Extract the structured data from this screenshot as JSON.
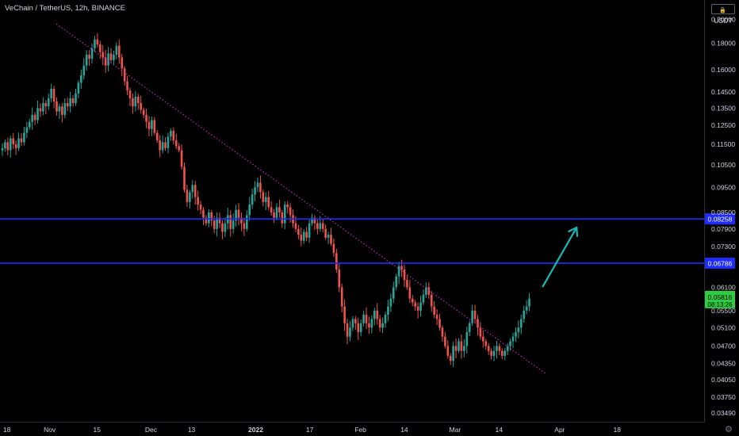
{
  "chart_title": "VeChain / TetherUS, 12h, BINANCE",
  "currency_label": "USDT",
  "icons": {
    "currency_toggle": "lock-icon",
    "settings": "gear-icon",
    "trend_arrow": "arrow-up-right-icon"
  },
  "colors": {
    "background": "#000000",
    "up_candle": "#26a69a",
    "down_candle": "#ef5350",
    "horizontal_levels": "#1e2bff",
    "trendline": "#c327c3",
    "arrow": "#17b8b8",
    "last_price_badge": "#2ecc40",
    "axis_text": "#d1d4dc"
  },
  "chart_data": {
    "type": "candlestick",
    "title": "VeChain / TetherUS, 12h, BINANCE",
    "price_scale_labels": [
      "0.20000",
      "0.18000",
      "0.16000",
      "0.14500",
      "0.13500",
      "0.12500",
      "0.11500",
      "0.10500",
      "0.09500",
      "0.08500",
      "0.07900",
      "0.07300",
      "0.06100",
      "0.05500",
      "0.05100",
      "0.04700",
      "0.04350",
      "0.04050",
      "0.03750",
      "0.03490"
    ],
    "price_scale": "logarithmic",
    "ylim": [
      0.0336,
      0.218
    ],
    "time_axis_labels": [
      "18",
      "Nov",
      "15",
      "Dec",
      "13",
      "2022",
      "17",
      "Feb",
      "14",
      "Mar",
      "14",
      "Apr",
      "18"
    ],
    "horizontal_levels": [
      {
        "label": "0.08258",
        "value": 0.08258
      },
      {
        "label": "0.06786",
        "value": 0.06786
      }
    ],
    "last_price": {
      "label": "0.05816",
      "countdown": "08:13:26",
      "value": 0.05816
    },
    "trendline": {
      "style": "dotted",
      "from": {
        "date": "2021-11-03",
        "price": 0.196
      },
      "to": {
        "date": "2022-03-28",
        "price": 0.0415
      }
    },
    "arrow": {
      "from": {
        "date": "2022-03-27",
        "price": 0.0612
      },
      "to": {
        "date": "2022-04-06",
        "price": 0.0795
      }
    },
    "closes": [
      0.113,
      0.116,
      0.112,
      0.118,
      0.115,
      0.113,
      0.118,
      0.116,
      0.121,
      0.124,
      0.127,
      0.131,
      0.128,
      0.135,
      0.133,
      0.138,
      0.136,
      0.141,
      0.147,
      0.139,
      0.133,
      0.136,
      0.131,
      0.138,
      0.136,
      0.141,
      0.138,
      0.144,
      0.151,
      0.156,
      0.163,
      0.171,
      0.168,
      0.176,
      0.183,
      0.179,
      0.173,
      0.169,
      0.163,
      0.172,
      0.167,
      0.171,
      0.178,
      0.169,
      0.161,
      0.152,
      0.146,
      0.141,
      0.136,
      0.142,
      0.138,
      0.134,
      0.131,
      0.127,
      0.123,
      0.128,
      0.121,
      0.117,
      0.112,
      0.116,
      0.113,
      0.119,
      0.122,
      0.117,
      0.114,
      0.112,
      0.104,
      0.094,
      0.089,
      0.093,
      0.096,
      0.091,
      0.088,
      0.086,
      0.083,
      0.081,
      0.085,
      0.082,
      0.079,
      0.083,
      0.081,
      0.078,
      0.081,
      0.084,
      0.079,
      0.082,
      0.086,
      0.083,
      0.081,
      0.079,
      0.084,
      0.088,
      0.092,
      0.095,
      0.097,
      0.093,
      0.089,
      0.091,
      0.087,
      0.085,
      0.083,
      0.087,
      0.085,
      0.081,
      0.088,
      0.087,
      0.084,
      0.081,
      0.079,
      0.077,
      0.075,
      0.078,
      0.076,
      0.081,
      0.083,
      0.081,
      0.079,
      0.081,
      0.079,
      0.076,
      0.077,
      0.074,
      0.071,
      0.066,
      0.061,
      0.056,
      0.052,
      0.049,
      0.051,
      0.053,
      0.052,
      0.05,
      0.052,
      0.054,
      0.052,
      0.051,
      0.053,
      0.055,
      0.053,
      0.051,
      0.052,
      0.054,
      0.056,
      0.058,
      0.061,
      0.064,
      0.067,
      0.066,
      0.063,
      0.061,
      0.058,
      0.057,
      0.056,
      0.055,
      0.057,
      0.059,
      0.061,
      0.059,
      0.056,
      0.054,
      0.053,
      0.051,
      0.049,
      0.047,
      0.045,
      0.044,
      0.047,
      0.046,
      0.048,
      0.046,
      0.047,
      0.05,
      0.052,
      0.055,
      0.053,
      0.051,
      0.049,
      0.048,
      0.047,
      0.046,
      0.045,
      0.046,
      0.047,
      0.046,
      0.045,
      0.046,
      0.047,
      0.048,
      0.049,
      0.05,
      0.051,
      0.053,
      0.055,
      0.056,
      0.058
    ]
  }
}
